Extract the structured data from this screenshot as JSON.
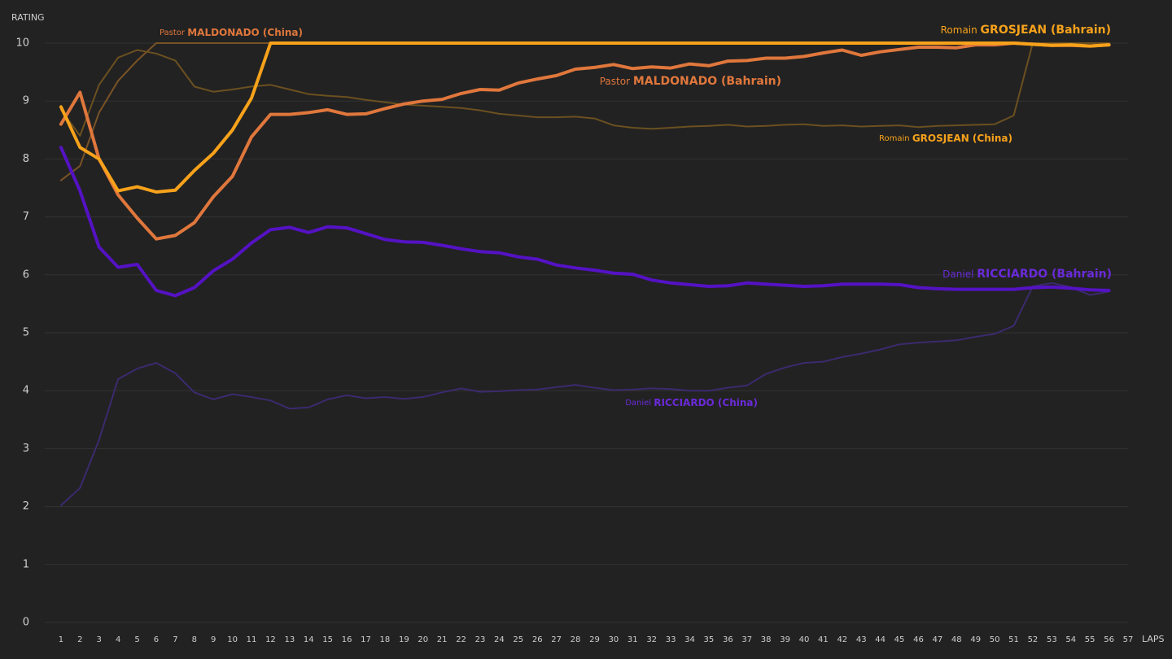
{
  "chart_data": {
    "type": "line",
    "y_label": "RATING",
    "x_label": "LAPS",
    "x": [
      1,
      2,
      3,
      4,
      5,
      6,
      7,
      8,
      9,
      10,
      11,
      12,
      13,
      14,
      15,
      16,
      17,
      18,
      19,
      20,
      21,
      22,
      23,
      24,
      25,
      26,
      27,
      28,
      29,
      30,
      31,
      32,
      33,
      34,
      35,
      36,
      37,
      38,
      39,
      40,
      41,
      42,
      43,
      44,
      45,
      46,
      47,
      48,
      49,
      50,
      51,
      52,
      53,
      54,
      55,
      56
    ],
    "xlim": [
      0.15,
      57
    ],
    "xticks": [
      1,
      2,
      3,
      4,
      5,
      6,
      7,
      8,
      9,
      10,
      11,
      12,
      13,
      14,
      15,
      16,
      17,
      18,
      19,
      20,
      21,
      22,
      23,
      24,
      25,
      26,
      27,
      28,
      29,
      30,
      31,
      32,
      33,
      34,
      35,
      36,
      37,
      38,
      39,
      40,
      41,
      42,
      43,
      44,
      45,
      46,
      47,
      48,
      49,
      50,
      51,
      52,
      53,
      54,
      55,
      56,
      57
    ],
    "ylim": [
      0,
      10
    ],
    "yticks": [
      0,
      1,
      2,
      3,
      4,
      5,
      6,
      7,
      8,
      9,
      10
    ],
    "grid": true,
    "series": [
      {
        "name": "Daniel RICCIARDO (China)",
        "color": "#3b2a6e",
        "values": [
          2.02,
          2.32,
          3.15,
          4.2,
          4.38,
          4.48,
          4.3,
          3.97,
          3.85,
          3.94,
          3.89,
          3.83,
          3.69,
          3.71,
          3.85,
          3.92,
          3.87,
          3.89,
          3.86,
          3.89,
          3.97,
          4.04,
          3.98,
          3.99,
          4.01,
          4.02,
          4.06,
          4.1,
          4.05,
          4.01,
          4.02,
          4.04,
          4.03,
          4.0,
          4.0,
          4.05,
          4.09,
          4.29,
          4.4,
          4.48,
          4.5,
          4.58,
          4.64,
          4.71,
          4.8,
          4.83,
          4.85,
          4.87,
          4.93,
          4.98,
          5.12,
          5.8,
          5.86,
          5.79,
          5.65,
          5.71
        ]
      },
      {
        "name": "Pastor MALDONADO (China)",
        "color": "#7a5326",
        "values": [
          7.63,
          7.88,
          8.8,
          9.35,
          9.7,
          10,
          10,
          10,
          10,
          10,
          10,
          10,
          10,
          10,
          10,
          10,
          10,
          10,
          10,
          10,
          10,
          10,
          10,
          10,
          10,
          10,
          10,
          10,
          10,
          10,
          10,
          10,
          10,
          10,
          10,
          10,
          10,
          10,
          10,
          10,
          10,
          10,
          10,
          10,
          10,
          10,
          10,
          10,
          10,
          10,
          10,
          10,
          10,
          10,
          10,
          10
        ]
      },
      {
        "name": "Romain GROSJEAN (China)",
        "color": "#6b5020",
        "values": [
          8.85,
          8.4,
          9.28,
          9.75,
          9.88,
          9.82,
          9.7,
          9.25,
          9.16,
          9.2,
          9.25,
          9.28,
          9.2,
          9.12,
          9.09,
          9.07,
          9.02,
          8.98,
          8.94,
          8.92,
          8.9,
          8.88,
          8.84,
          8.78,
          8.75,
          8.72,
          8.72,
          8.73,
          8.7,
          8.58,
          8.54,
          8.52,
          8.54,
          8.56,
          8.57,
          8.59,
          8.56,
          8.57,
          8.59,
          8.6,
          8.57,
          8.58,
          8.56,
          8.57,
          8.58,
          8.55,
          8.57,
          8.58,
          8.59,
          8.6,
          8.75,
          10,
          10,
          10,
          10,
          10
        ]
      },
      {
        "name": "Daniel RICCIARDO (Bahrain)",
        "color": "#5512c4",
        "values": [
          8.2,
          7.45,
          6.48,
          6.13,
          6.18,
          5.73,
          5.64,
          5.78,
          6.07,
          6.27,
          6.55,
          6.78,
          6.82,
          6.73,
          6.83,
          6.81,
          6.71,
          6.61,
          6.57,
          6.56,
          6.51,
          6.45,
          6.4,
          6.38,
          6.31,
          6.27,
          6.17,
          6.12,
          6.08,
          6.03,
          6.01,
          5.91,
          5.86,
          5.83,
          5.8,
          5.81,
          5.86,
          5.84,
          5.82,
          5.8,
          5.81,
          5.84,
          5.84,
          5.84,
          5.83,
          5.78,
          5.76,
          5.75,
          5.75,
          5.75,
          5.75,
          5.78,
          5.79,
          5.77,
          5.74,
          5.73
        ]
      },
      {
        "name": "Pastor MALDONADO (Bahrain)",
        "color": "#e0773c",
        "values": [
          8.6,
          9.15,
          8.0,
          7.38,
          6.98,
          6.62,
          6.68,
          6.9,
          7.35,
          7.7,
          8.38,
          8.77,
          8.77,
          8.8,
          8.85,
          8.77,
          8.78,
          8.87,
          8.95,
          9.0,
          9.03,
          9.13,
          9.2,
          9.19,
          9.31,
          9.38,
          9.44,
          9.55,
          9.58,
          9.63,
          9.56,
          9.59,
          9.57,
          9.64,
          9.61,
          9.69,
          9.7,
          9.74,
          9.74,
          9.77,
          9.83,
          9.88,
          9.79,
          9.85,
          9.89,
          9.93,
          9.93,
          9.92,
          9.97,
          9.97,
          10,
          9.98,
          9.96,
          9.96,
          9.95,
          9.97
        ]
      },
      {
        "name": "Romain GROSJEAN (Bahrain)",
        "color": "#f7a21b",
        "values": [
          8.9,
          8.2,
          8.0,
          7.45,
          7.52,
          7.43,
          7.46,
          7.8,
          8.1,
          8.5,
          9.05,
          10,
          10,
          10,
          10,
          10,
          10,
          10,
          10,
          10,
          10,
          10,
          10,
          10,
          10,
          10,
          10,
          10,
          10,
          10,
          10,
          10,
          10,
          10,
          10,
          10,
          10,
          10,
          10,
          10,
          10,
          10,
          10,
          10,
          10,
          10,
          10,
          10,
          10,
          10,
          10,
          9.98,
          9.96,
          9.97,
          9.95,
          9.97
        ]
      }
    ]
  }
}
